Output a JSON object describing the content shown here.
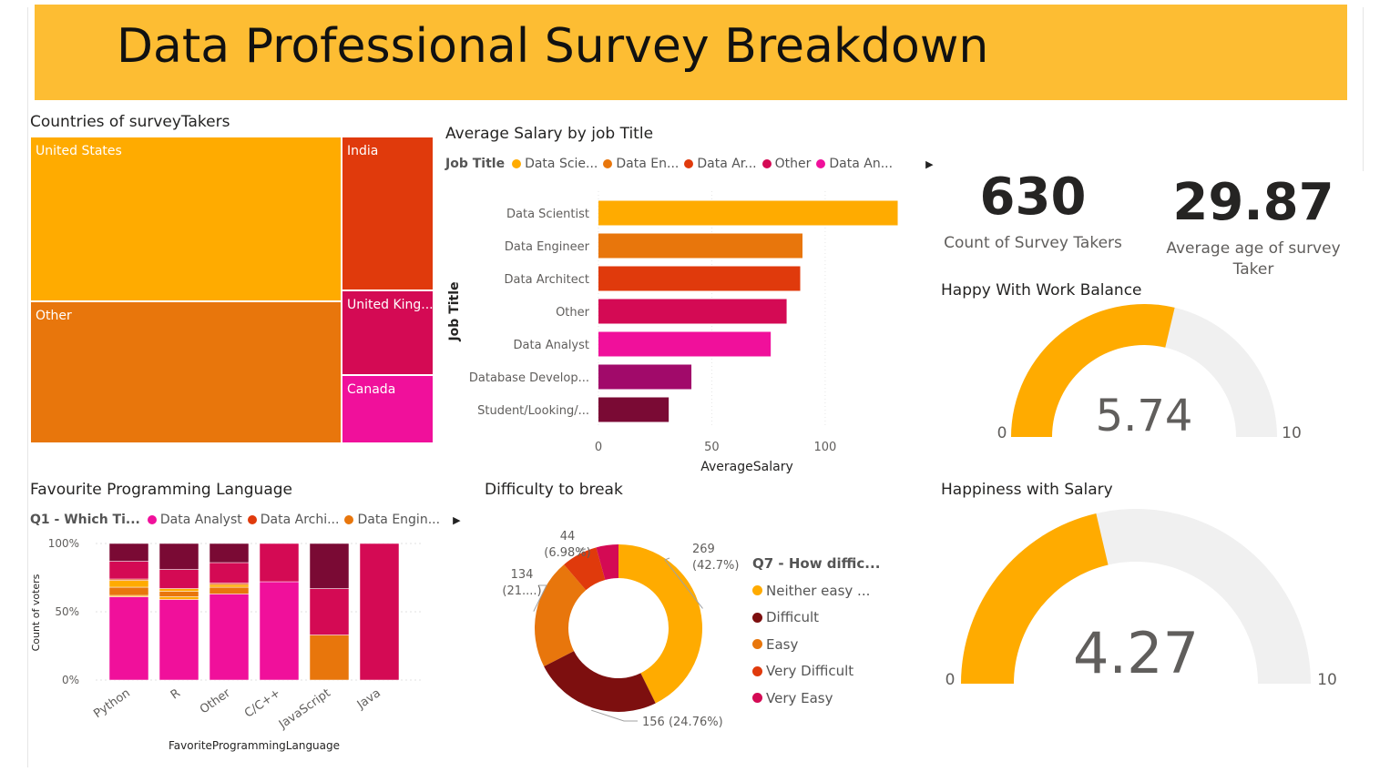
{
  "header": {
    "title": "Data Professional Survey Breakdown"
  },
  "colors": {
    "banner": "#fdbd33",
    "orange_gold": "#ffab00",
    "orange": "#e8760c",
    "red_orange": "#e03a0c",
    "crimson": "#d40a54",
    "pink": "#f0109b",
    "magenta_dark": "#a10a6a",
    "maroon": "#7a0a34",
    "dark_red": "#7d0f0f",
    "gauge_track": "#f0f0f0"
  },
  "countries": {
    "title": "Countries of surveyTakers",
    "cells": [
      {
        "label": "United States",
        "color": "#ffab00"
      },
      {
        "label": "Other",
        "color": "#e8760c"
      },
      {
        "label": "India",
        "color": "#e03a0c"
      },
      {
        "label": "United King...",
        "color": "#d40a54"
      },
      {
        "label": "Canada",
        "color": "#f0109b"
      }
    ]
  },
  "salary": {
    "title": "Average Salary by job Title",
    "legend_title": "Job Title",
    "legend_items": [
      {
        "label": "Data Scie...",
        "color": "#ffab00"
      },
      {
        "label": "Data En...",
        "color": "#e8760c"
      },
      {
        "label": "Data Ar...",
        "color": "#e03a0c"
      },
      {
        "label": "Other",
        "color": "#d40a54"
      },
      {
        "label": "Data An...",
        "color": "#f0109b"
      }
    ],
    "more_icon": "triangle-right-icon",
    "more_glyph": "▶"
  },
  "kpis": {
    "count_value": "630",
    "count_label": "Count of Survey Takers",
    "age_value": "29.87",
    "age_label_line1": "Average age of survey",
    "age_label_line2": "Taker"
  },
  "work_balance": {
    "title": "Happy With Work Balance"
  },
  "salary_happiness": {
    "title": "Happiness with Salary"
  },
  "languages": {
    "title": "Favourite Programming Language",
    "legend_title": "Q1 - Which Ti...",
    "legend_items": [
      {
        "label": "Data Analyst",
        "color": "#f0109b"
      },
      {
        "label": "Data Archi...",
        "color": "#e03a0c"
      },
      {
        "label": "Data Engin...",
        "color": "#e8760c"
      }
    ],
    "more_icon": "triangle-right-icon",
    "more_glyph": "▶"
  },
  "difficulty": {
    "title": "Difficulty to break",
    "legend_title": "Q7 - How diffic...",
    "legend_items": [
      {
        "label": "Neither easy ...",
        "color": "#ffab00"
      },
      {
        "label": "Difficult",
        "color": "#7d0f0f"
      },
      {
        "label": "Easy",
        "color": "#e8760c"
      },
      {
        "label": "Very Difficult",
        "color": "#e03a0c"
      },
      {
        "label": "Very Easy",
        "color": "#d40a54"
      }
    ]
  },
  "chart_data": [
    {
      "id": "countries",
      "type": "treemap",
      "title": "Countries of surveyTakers",
      "categories": [
        "United States",
        "Other",
        "India",
        "United King...",
        "Canada"
      ],
      "values": [
        220,
        198,
        74,
        40,
        42
      ]
    },
    {
      "id": "salary",
      "type": "bar",
      "orientation": "horizontal",
      "title": "Average Salary by job Title",
      "categories": [
        "Data Scientist",
        "Data Engineer",
        "Data Architect",
        "Other",
        "Data Analyst",
        "Database Develop...",
        "Student/Looking/..."
      ],
      "values": [
        132,
        90,
        89,
        83,
        76,
        41,
        31
      ],
      "colors": [
        "#ffab00",
        "#e8760c",
        "#e03a0c",
        "#d40a54",
        "#f0109b",
        "#a10a6a",
        "#7a0a34"
      ],
      "xlabel": "AverageSalary",
      "ylabel": "Job Title",
      "xticks": [
        "0",
        "50",
        "100"
      ],
      "xlim": [
        0,
        135
      ],
      "grid": true
    },
    {
      "id": "work_balance",
      "type": "gauge",
      "title": "Happy With Work Balance",
      "value": 5.74,
      "value_label": "5.74",
      "min": 0,
      "max": 10,
      "min_label": "0",
      "max_label": "10",
      "color": "#ffab00"
    },
    {
      "id": "salary_happiness",
      "type": "gauge",
      "title": "Happiness with Salary",
      "value": 4.27,
      "value_label": "4.27",
      "min": 0,
      "max": 10,
      "min_label": "0",
      "max_label": "10",
      "color": "#ffab00"
    },
    {
      "id": "languages",
      "type": "bar",
      "stacked": "percent",
      "title": "Favourite Programming Language",
      "categories": [
        "Python",
        "R",
        "Other",
        "C/C++",
        "JavaScript",
        "Java"
      ],
      "series": [
        {
          "name": "Data Analyst",
          "color": "#f0109b",
          "values": [
            61,
            59,
            63,
            72,
            0,
            0
          ]
        },
        {
          "name": "",
          "color": "#ffab00",
          "values": [
            1,
            2,
            0,
            0,
            0,
            0
          ]
        },
        {
          "name": "Data Engin...",
          "color": "#e8760c",
          "values": [
            6,
            4,
            5,
            0,
            33,
            0
          ]
        },
        {
          "name": "",
          "color": "#ffab00",
          "values": [
            5,
            2,
            2,
            0,
            0,
            0
          ]
        },
        {
          "name": "Data Archi...",
          "color": "#e03a0c",
          "values": [
            1,
            0,
            1,
            0,
            0,
            0
          ]
        },
        {
          "name": "",
          "color": "#d40a54",
          "values": [
            13,
            14,
            15,
            28,
            34,
            100
          ]
        },
        {
          "name": "",
          "color": "#7a0a34",
          "values": [
            13,
            19,
            14,
            0,
            33,
            0
          ]
        }
      ],
      "xlabel": "FavoriteProgrammingLanguage",
      "ylabel": "Count of voters",
      "yticks": [
        "100%",
        "50%",
        "0%"
      ]
    },
    {
      "id": "difficulty",
      "type": "pie",
      "donut": true,
      "title": "Difficulty to break",
      "categories": [
        "Neither easy ...",
        "Difficult",
        "Easy",
        "Very Difficult",
        "Very Easy"
      ],
      "values": [
        269,
        156,
        134,
        44,
        27
      ],
      "colors": [
        "#ffab00",
        "#7d0f0f",
        "#e8760c",
        "#e03a0c",
        "#d40a54"
      ],
      "data_labels": [
        [
          "269",
          "(42.7%)"
        ],
        [
          "156 (24.76%)"
        ],
        [
          "134",
          "(21....)"
        ],
        [
          "44",
          "(6.98%)"
        ],
        []
      ]
    }
  ]
}
